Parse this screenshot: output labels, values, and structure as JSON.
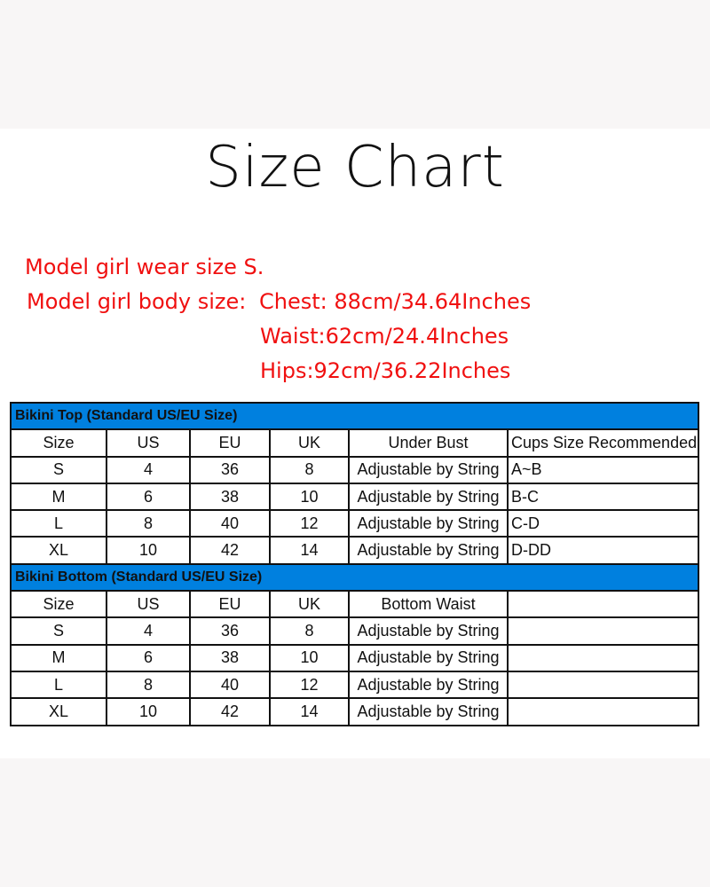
{
  "title": "Size Chart",
  "model_info": {
    "wear": "Model girl wear size S.",
    "body_label": "Model girl body size:",
    "chest": "Chest: 88cm/34.64Inches",
    "waist": "Waist:62cm/24.4Inches",
    "hips": "Hips:92cm/36.22Inches"
  },
  "colors": {
    "header_blue": "#0080df",
    "note_red": "#f01010"
  },
  "top_table": {
    "heading": "Bikini Top  (Standard US/EU Size)",
    "columns": [
      "Size",
      "US",
      "EU",
      "UK",
      "Under Bust",
      "Cups Size Recommended"
    ],
    "rows": [
      [
        "S",
        "4",
        "36",
        "8",
        "Adjustable by String",
        "A~B"
      ],
      [
        "M",
        "6",
        "38",
        "10",
        "Adjustable by String",
        "B-C"
      ],
      [
        "L",
        "8",
        "40",
        "12",
        "Adjustable by String",
        "C-D"
      ],
      [
        "XL",
        "10",
        "42",
        "14",
        "Adjustable by String",
        "D-DD"
      ]
    ]
  },
  "bottom_table": {
    "heading": "Bikini Bottom  (Standard US/EU Size)",
    "columns": [
      "Size",
      "US",
      "EU",
      "UK",
      "Bottom Waist",
      ""
    ],
    "rows": [
      [
        "S",
        "4",
        "36",
        "8",
        "Adjustable by String",
        ""
      ],
      [
        "M",
        "6",
        "38",
        "10",
        "Adjustable by String",
        ""
      ],
      [
        "L",
        "8",
        "40",
        "12",
        "Adjustable by String",
        ""
      ],
      [
        "XL",
        "10",
        "42",
        "14",
        "Adjustable by String",
        ""
      ]
    ]
  }
}
